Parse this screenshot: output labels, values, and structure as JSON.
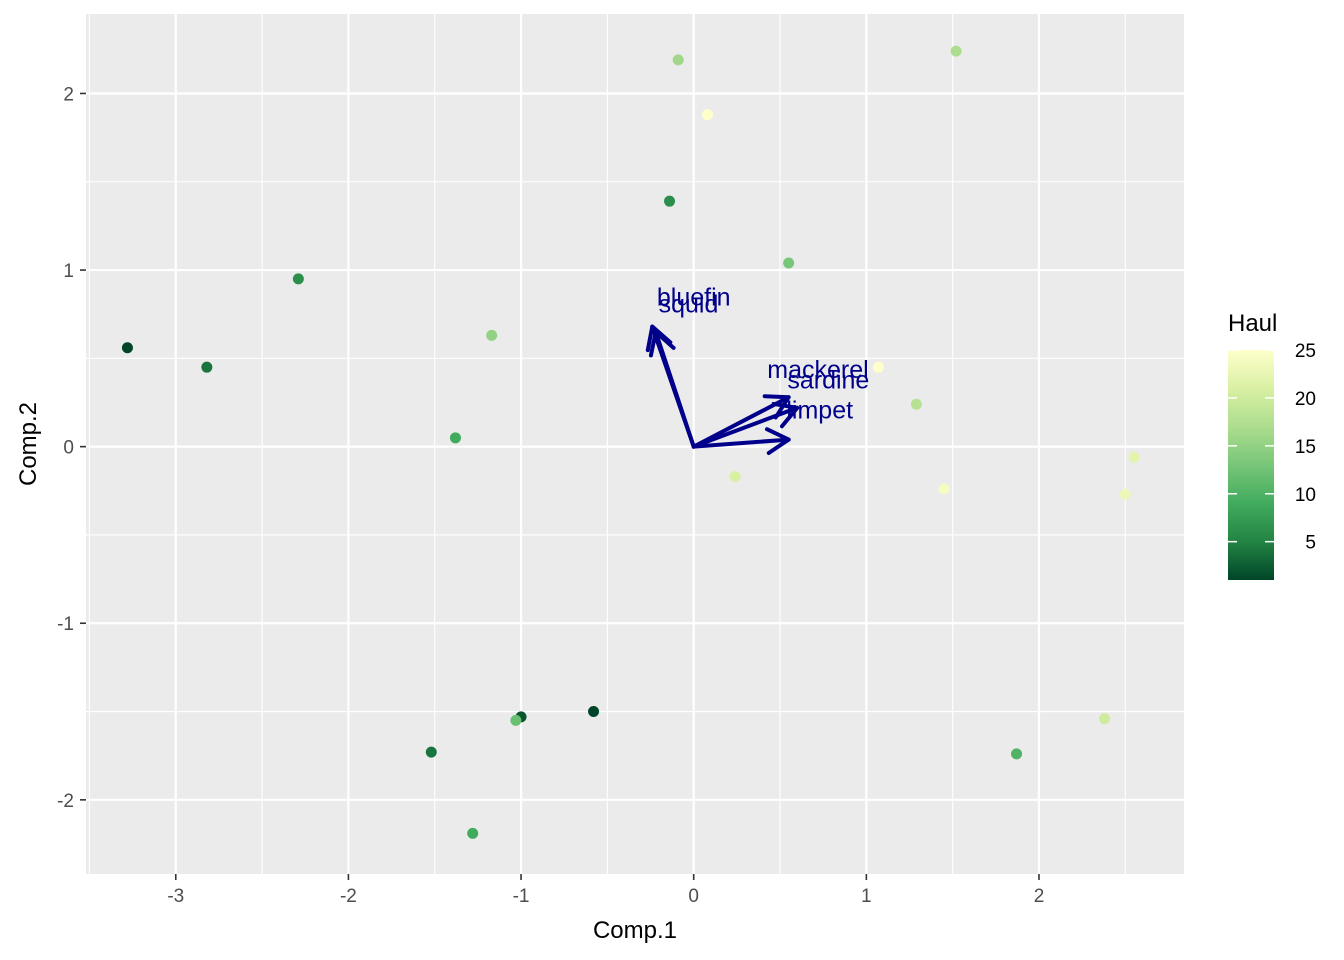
{
  "chart_data": {
    "type": "scatter",
    "xlabel": "Comp.1",
    "ylabel": "Comp.2",
    "xlim": [
      -3.52,
      2.84
    ],
    "ylim": [
      -2.42,
      2.45
    ],
    "x_ticks": [
      -3,
      -2,
      -1,
      0,
      1,
      2
    ],
    "y_ticks": [
      -2,
      -1,
      0,
      1,
      2
    ],
    "x_tick_labels": [
      "-3",
      "-2",
      "-1",
      "0",
      "1",
      "2"
    ],
    "y_tick_labels": [
      "-2",
      "-1",
      "0",
      "1",
      "2"
    ],
    "grid": true,
    "legend": {
      "title": "Haul",
      "placement": "right",
      "min": 1,
      "max": 25,
      "ticks": [
        5,
        10,
        15,
        20,
        25
      ],
      "tick_labels": [
        "5",
        "10",
        "15",
        "20",
        "25"
      ],
      "colors": [
        "#004529",
        "#238443",
        "#41ab5d",
        "#78c679",
        "#addd8e",
        "#d9f0a3",
        "#ffffcc"
      ]
    },
    "points": [
      {
        "x": -3.28,
        "y": 0.56,
        "haul": 1
      },
      {
        "x": -2.82,
        "y": 0.45,
        "haul": 4
      },
      {
        "x": -2.29,
        "y": 0.95,
        "haul": 6
      },
      {
        "x": -1.17,
        "y": 0.63,
        "haul": 15
      },
      {
        "x": -1.38,
        "y": 0.05,
        "haul": 9
      },
      {
        "x": -0.09,
        "y": 2.19,
        "haul": 16
      },
      {
        "x": 0.08,
        "y": 1.88,
        "haul": 25
      },
      {
        "x": -0.14,
        "y": 1.39,
        "haul": 6
      },
      {
        "x": 0.55,
        "y": 1.04,
        "haul": 13
      },
      {
        "x": 1.52,
        "y": 2.24,
        "haul": 17
      },
      {
        "x": 0.24,
        "y": -0.17,
        "haul": 21
      },
      {
        "x": 1.07,
        "y": 0.45,
        "haul": 25
      },
      {
        "x": 1.29,
        "y": 0.24,
        "haul": 18
      },
      {
        "x": 1.45,
        "y": -0.24,
        "haul": 24
      },
      {
        "x": 2.55,
        "y": -0.06,
        "haul": 22
      },
      {
        "x": 2.5,
        "y": -0.27,
        "haul": 23
      },
      {
        "x": 2.38,
        "y": -1.54,
        "haul": 20
      },
      {
        "x": 1.87,
        "y": -1.74,
        "haul": 10
      },
      {
        "x": -0.58,
        "y": -1.5,
        "haul": 1
      },
      {
        "x": -1.0,
        "y": -1.53,
        "haul": 2
      },
      {
        "x": -1.03,
        "y": -1.55,
        "haul": 12
      },
      {
        "x": -1.52,
        "y": -1.73,
        "haul": 4
      },
      {
        "x": -1.28,
        "y": -2.19,
        "haul": 9
      }
    ],
    "loadings": [
      {
        "name": "bluefin",
        "x": -0.24,
        "y": 0.68,
        "label_x": 0.0,
        "label_y": 0.85
      },
      {
        "name": "squid",
        "x": -0.22,
        "y": 0.65,
        "label_x": -0.03,
        "label_y": 0.81
      },
      {
        "name": "mackerel",
        "x": 0.55,
        "y": 0.28,
        "label_x": 0.72,
        "label_y": 0.44
      },
      {
        "name": "sardine",
        "x": 0.6,
        "y": 0.22,
        "label_x": 0.78,
        "label_y": 0.38
      },
      {
        "name": "limpet",
        "x": 0.55,
        "y": 0.04,
        "label_x": 0.73,
        "label_y": 0.21
      }
    ]
  }
}
